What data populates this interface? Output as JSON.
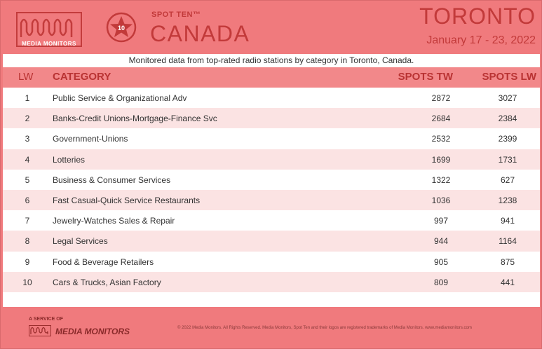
{
  "brand": {
    "logo_text": "MEDIA MONITORS",
    "badge_number": "10",
    "spot_ten": "SPOT TEN™",
    "country": "CANADA"
  },
  "header": {
    "city": "TORONTO",
    "date_range": "January 17 - 23, 2022"
  },
  "subtitle": "Monitored data from top-rated radio stations by category in Toronto, Canada.",
  "table": {
    "columns": {
      "lw": "LW",
      "category": "CATEGORY",
      "spots_tw": "SPOTS TW",
      "spots_lw": "SPOTS LW"
    },
    "rows": [
      {
        "rank": "1",
        "category": "Public Service & Organizational Adv",
        "tw": "2872",
        "lw": "3027"
      },
      {
        "rank": "2",
        "category": "Banks-Credit Unions-Mortgage-Finance Svc",
        "tw": "2684",
        "lw": "2384"
      },
      {
        "rank": "3",
        "category": "Government-Unions",
        "tw": "2532",
        "lw": "2399"
      },
      {
        "rank": "4",
        "category": "Lotteries",
        "tw": "1699",
        "lw": "1731"
      },
      {
        "rank": "5",
        "category": "Business & Consumer Services",
        "tw": "1322",
        "lw": "627"
      },
      {
        "rank": "6",
        "category": "Fast Casual-Quick Service Restaurants",
        "tw": "1036",
        "lw": "1238"
      },
      {
        "rank": "7",
        "category": "Jewelry-Watches Sales & Repair",
        "tw": "997",
        "lw": "941"
      },
      {
        "rank": "8",
        "category": "Legal Services",
        "tw": "944",
        "lw": "1164"
      },
      {
        "rank": "9",
        "category": "Food & Beverage Retailers",
        "tw": "905",
        "lw": "875"
      },
      {
        "rank": "10",
        "category": "Cars & Trucks, Asian Factory",
        "tw": "809",
        "lw": "441"
      }
    ]
  },
  "footer": {
    "service_of": "A SERVICE OF",
    "brand": "MEDIA MONITORS",
    "copyright": "© 2022 Media Monitors. All Rights Reserved. Media Monitors, Spot Ten and their logos are registered trademarks of Media Monitors. www.mediamonitors.com"
  },
  "colors": {
    "background": "#f07a7d",
    "accent": "#c23a3a",
    "header_row": "#f2888a",
    "stripe": "#fbe3e3"
  }
}
